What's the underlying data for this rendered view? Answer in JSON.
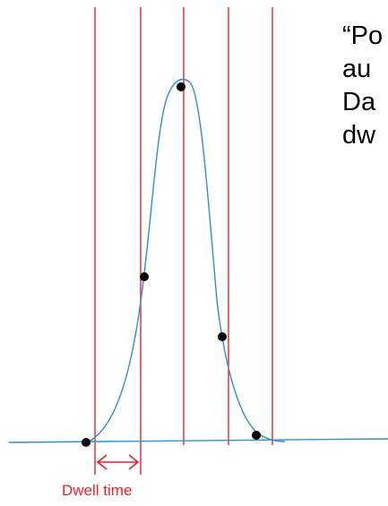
{
  "side_text": {
    "lines": [
      "“Po",
      "au",
      "Da",
      "dw"
    ]
  },
  "dwell_label": "Dwell time",
  "colors": {
    "vertical_lines": "#e8212b",
    "baseline": "#2f8fd0",
    "curve": "#2f8fd0",
    "points": "#000000",
    "dwell_arrow": "#e8212b",
    "dwell_label": "#e8212b"
  }
}
